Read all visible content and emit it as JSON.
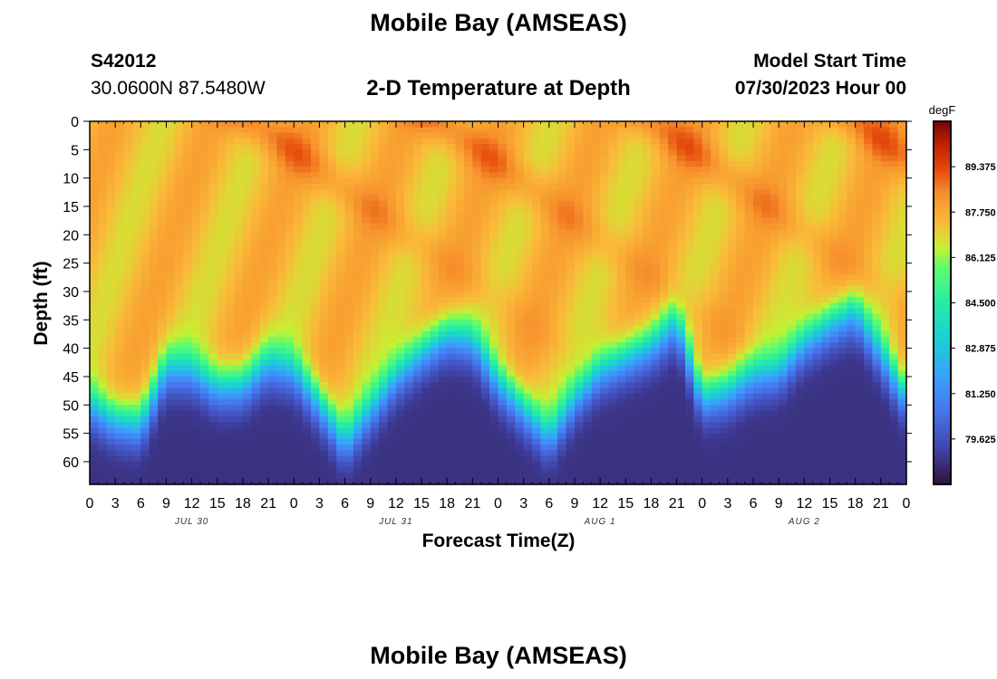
{
  "page": {
    "title_top": "Mobile Bay (AMSEAS)",
    "title_bottom": "Mobile Bay (AMSEAS)",
    "station_id": "S42012",
    "coordinates": "30.0600N  87.5480W",
    "subtitle": "2-D Temperature at Depth",
    "model_start_label": "Model Start Time",
    "model_start_value": "07/30/2023 Hour 00"
  },
  "chart_data": {
    "type": "heatmap",
    "title": "2-D Temperature at Depth",
    "xlabel": "Forecast Time(Z)",
    "ylabel": "Depth (ft)",
    "x_range_hours": [
      0,
      96
    ],
    "x_ticks": [
      "0",
      "3",
      "6",
      "9",
      "12",
      "15",
      "18",
      "21",
      "0",
      "3",
      "6",
      "9",
      "12",
      "15",
      "18",
      "21",
      "0",
      "3",
      "6",
      "9",
      "12",
      "15",
      "18",
      "21",
      "0",
      "3",
      "6",
      "9",
      "12",
      "15",
      "18",
      "21",
      "0"
    ],
    "date_labels": [
      "JUL 30",
      "JUL 31",
      "AUG 1",
      "AUG 2"
    ],
    "y_range_ft": [
      0,
      64
    ],
    "y_ticks": [
      "0",
      "5",
      "10",
      "15",
      "20",
      "25",
      "30",
      "35",
      "40",
      "45",
      "50",
      "55",
      "60"
    ],
    "colorbar": {
      "units": "degF",
      "min": 78.0,
      "max": 91.0,
      "tick_labels": [
        "89.375",
        "87.750",
        "86.125",
        "84.500",
        "82.875",
        "81.250",
        "79.625"
      ]
    },
    "thermocline_depth_ft": [
      {
        "hour": 0,
        "depth": 49
      },
      {
        "hour": 3,
        "depth": 52
      },
      {
        "hour": 6,
        "depth": 53
      },
      {
        "hour": 9,
        "depth": 43
      },
      {
        "hour": 12,
        "depth": 43
      },
      {
        "hour": 15,
        "depth": 46
      },
      {
        "hour": 18,
        "depth": 46
      },
      {
        "hour": 21,
        "depth": 42
      },
      {
        "hour": 24,
        "depth": 43
      },
      {
        "hour": 27,
        "depth": 49
      },
      {
        "hour": 30,
        "depth": 56
      },
      {
        "hour": 33,
        "depth": 50
      },
      {
        "hour": 36,
        "depth": 44
      },
      {
        "hour": 39,
        "depth": 40
      },
      {
        "hour": 42,
        "depth": 37
      },
      {
        "hour": 45,
        "depth": 38
      },
      {
        "hour": 48,
        "depth": 45
      },
      {
        "hour": 51,
        "depth": 50
      },
      {
        "hour": 54,
        "depth": 55
      },
      {
        "hour": 57,
        "depth": 48
      },
      {
        "hour": 60,
        "depth": 43
      },
      {
        "hour": 63,
        "depth": 41
      },
      {
        "hour": 66,
        "depth": 39
      },
      {
        "hour": 69,
        "depth": 35
      },
      {
        "hour": 72,
        "depth": 48
      },
      {
        "hour": 75,
        "depth": 47
      },
      {
        "hour": 78,
        "depth": 44
      },
      {
        "hour": 81,
        "depth": 43
      },
      {
        "hour": 84,
        "depth": 38
      },
      {
        "hour": 87,
        "depth": 35
      },
      {
        "hour": 90,
        "depth": 33
      },
      {
        "hour": 93,
        "depth": 40
      },
      {
        "hour": 96,
        "depth": 48
      }
    ],
    "warm_surface_peaks_hours": [
      19,
      41,
      66,
      90
    ]
  }
}
